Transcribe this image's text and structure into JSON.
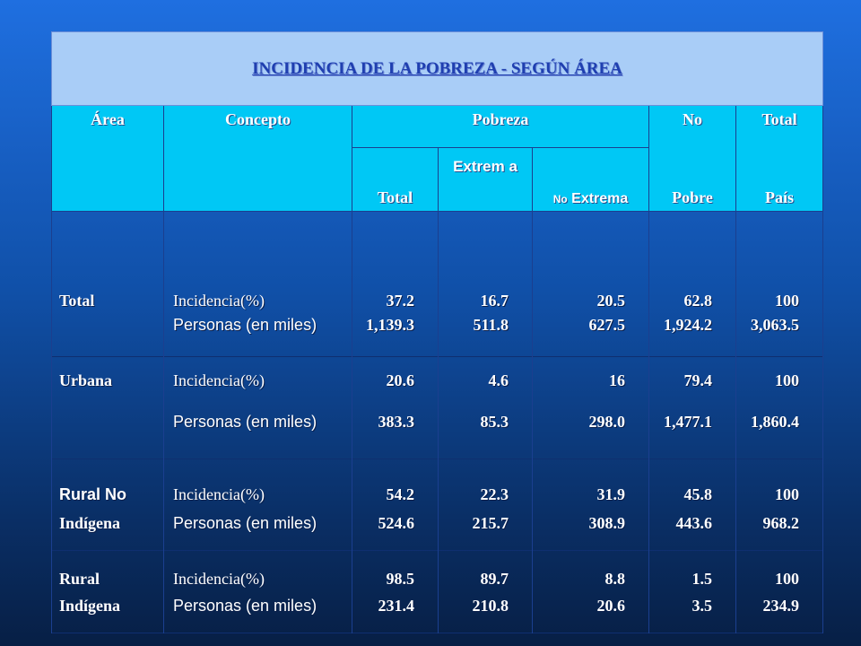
{
  "title": "INCIDENCIA DE LA POBREZA - SEGÚN ÁREA",
  "header": {
    "area": "Área",
    "concepto": "Concepto",
    "pobreza": "Pobreza",
    "no": "No",
    "pobre": "Pobre",
    "total": "Total",
    "pais": "País",
    "sub_total": "Total",
    "sub_extrema": "Extrem a",
    "sub_no_small": "No",
    "sub_no_extrema": "Extrema"
  },
  "groups": [
    {
      "area1": "Total",
      "area2": "",
      "rows": [
        {
          "concepto": "Incidencia(%)",
          "total": "37.2",
          "extrema": "16.7",
          "no_extrema": "20.5",
          "no_pobre": "62.8",
          "pais": "100"
        },
        {
          "concepto": "Personas (en miles)",
          "total": "1,139.3",
          "extrema": "511.8",
          "no_extrema": "627.5",
          "no_pobre": "1,924.2",
          "pais": "3,063.5"
        }
      ]
    },
    {
      "area1": "Urbana",
      "area2": "",
      "rows": [
        {
          "concepto": "Incidencia(%)",
          "total": "20.6",
          "extrema": "4.6",
          "no_extrema": "16",
          "no_pobre": "79.4",
          "pais": "100"
        },
        {
          "concepto": "Personas (en miles)",
          "total": "383.3",
          "extrema": "85.3",
          "no_extrema": "298.0",
          "no_pobre": "1,477.1",
          "pais": "1,860.4"
        }
      ]
    },
    {
      "area1": "Rural No",
      "area2": "Indígena",
      "rows": [
        {
          "concepto": "Incidencia(%)",
          "total": "54.2",
          "extrema": "22.3",
          "no_extrema": "31.9",
          "no_pobre": "45.8",
          "pais": "100"
        },
        {
          "concepto": "Personas (en miles)",
          "total": "524.6",
          "extrema": "215.7",
          "no_extrema": "308.9",
          "no_pobre": "443.6",
          "pais": "968.2"
        }
      ]
    },
    {
      "area1": "Rural",
      "area2": "Indígena",
      "rows": [
        {
          "concepto": "Incidencia(%)",
          "total": "98.5",
          "extrema": "89.7",
          "no_extrema": "8.8",
          "no_pobre": "1.5",
          "pais": "100"
        },
        {
          "concepto": "Personas (en miles)",
          "total": "231.4",
          "extrema": "210.8",
          "no_extrema": "20.6",
          "no_pobre": "3.5",
          "pais": "234.9"
        }
      ]
    }
  ]
}
